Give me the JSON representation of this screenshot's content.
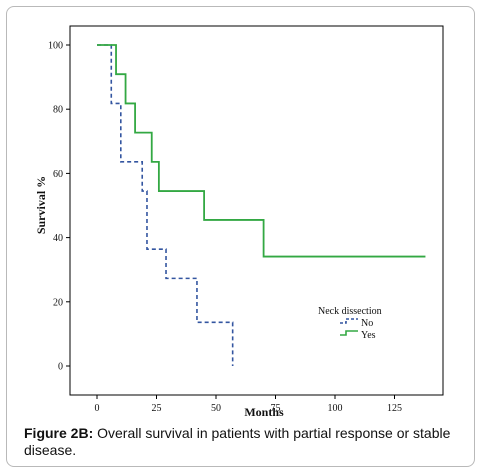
{
  "figure": {
    "label": "Figure 2B:",
    "caption": "Overall survival in patients with partial response or stable disease."
  },
  "chart_data": {
    "type": "line",
    "step": true,
    "xlabel": "Months",
    "ylabel": "Survival %",
    "xlim": [
      -5,
      145
    ],
    "ylim": [
      0,
      100
    ],
    "xticks": [
      0,
      25,
      50,
      75,
      100,
      125
    ],
    "yticks": [
      0,
      20,
      40,
      60,
      80,
      100
    ],
    "legend": {
      "title": "Neck dissection",
      "placement": "bottom-right"
    },
    "series": [
      {
        "name": "No",
        "color": "#3355a0",
        "style": "dashed",
        "x": [
          0,
          6,
          10,
          19,
          21,
          29,
          42,
          57
        ],
        "y": [
          100,
          81.8,
          63.6,
          54.5,
          36.4,
          27.3,
          13.6,
          0
        ]
      },
      {
        "name": "Yes",
        "color": "#33a843",
        "style": "solid",
        "x": [
          0,
          8,
          12,
          16,
          23,
          26,
          45,
          70,
          138
        ],
        "y": [
          100,
          90.9,
          81.8,
          72.7,
          63.6,
          54.5,
          45.5,
          34.1,
          34.1
        ]
      }
    ]
  }
}
